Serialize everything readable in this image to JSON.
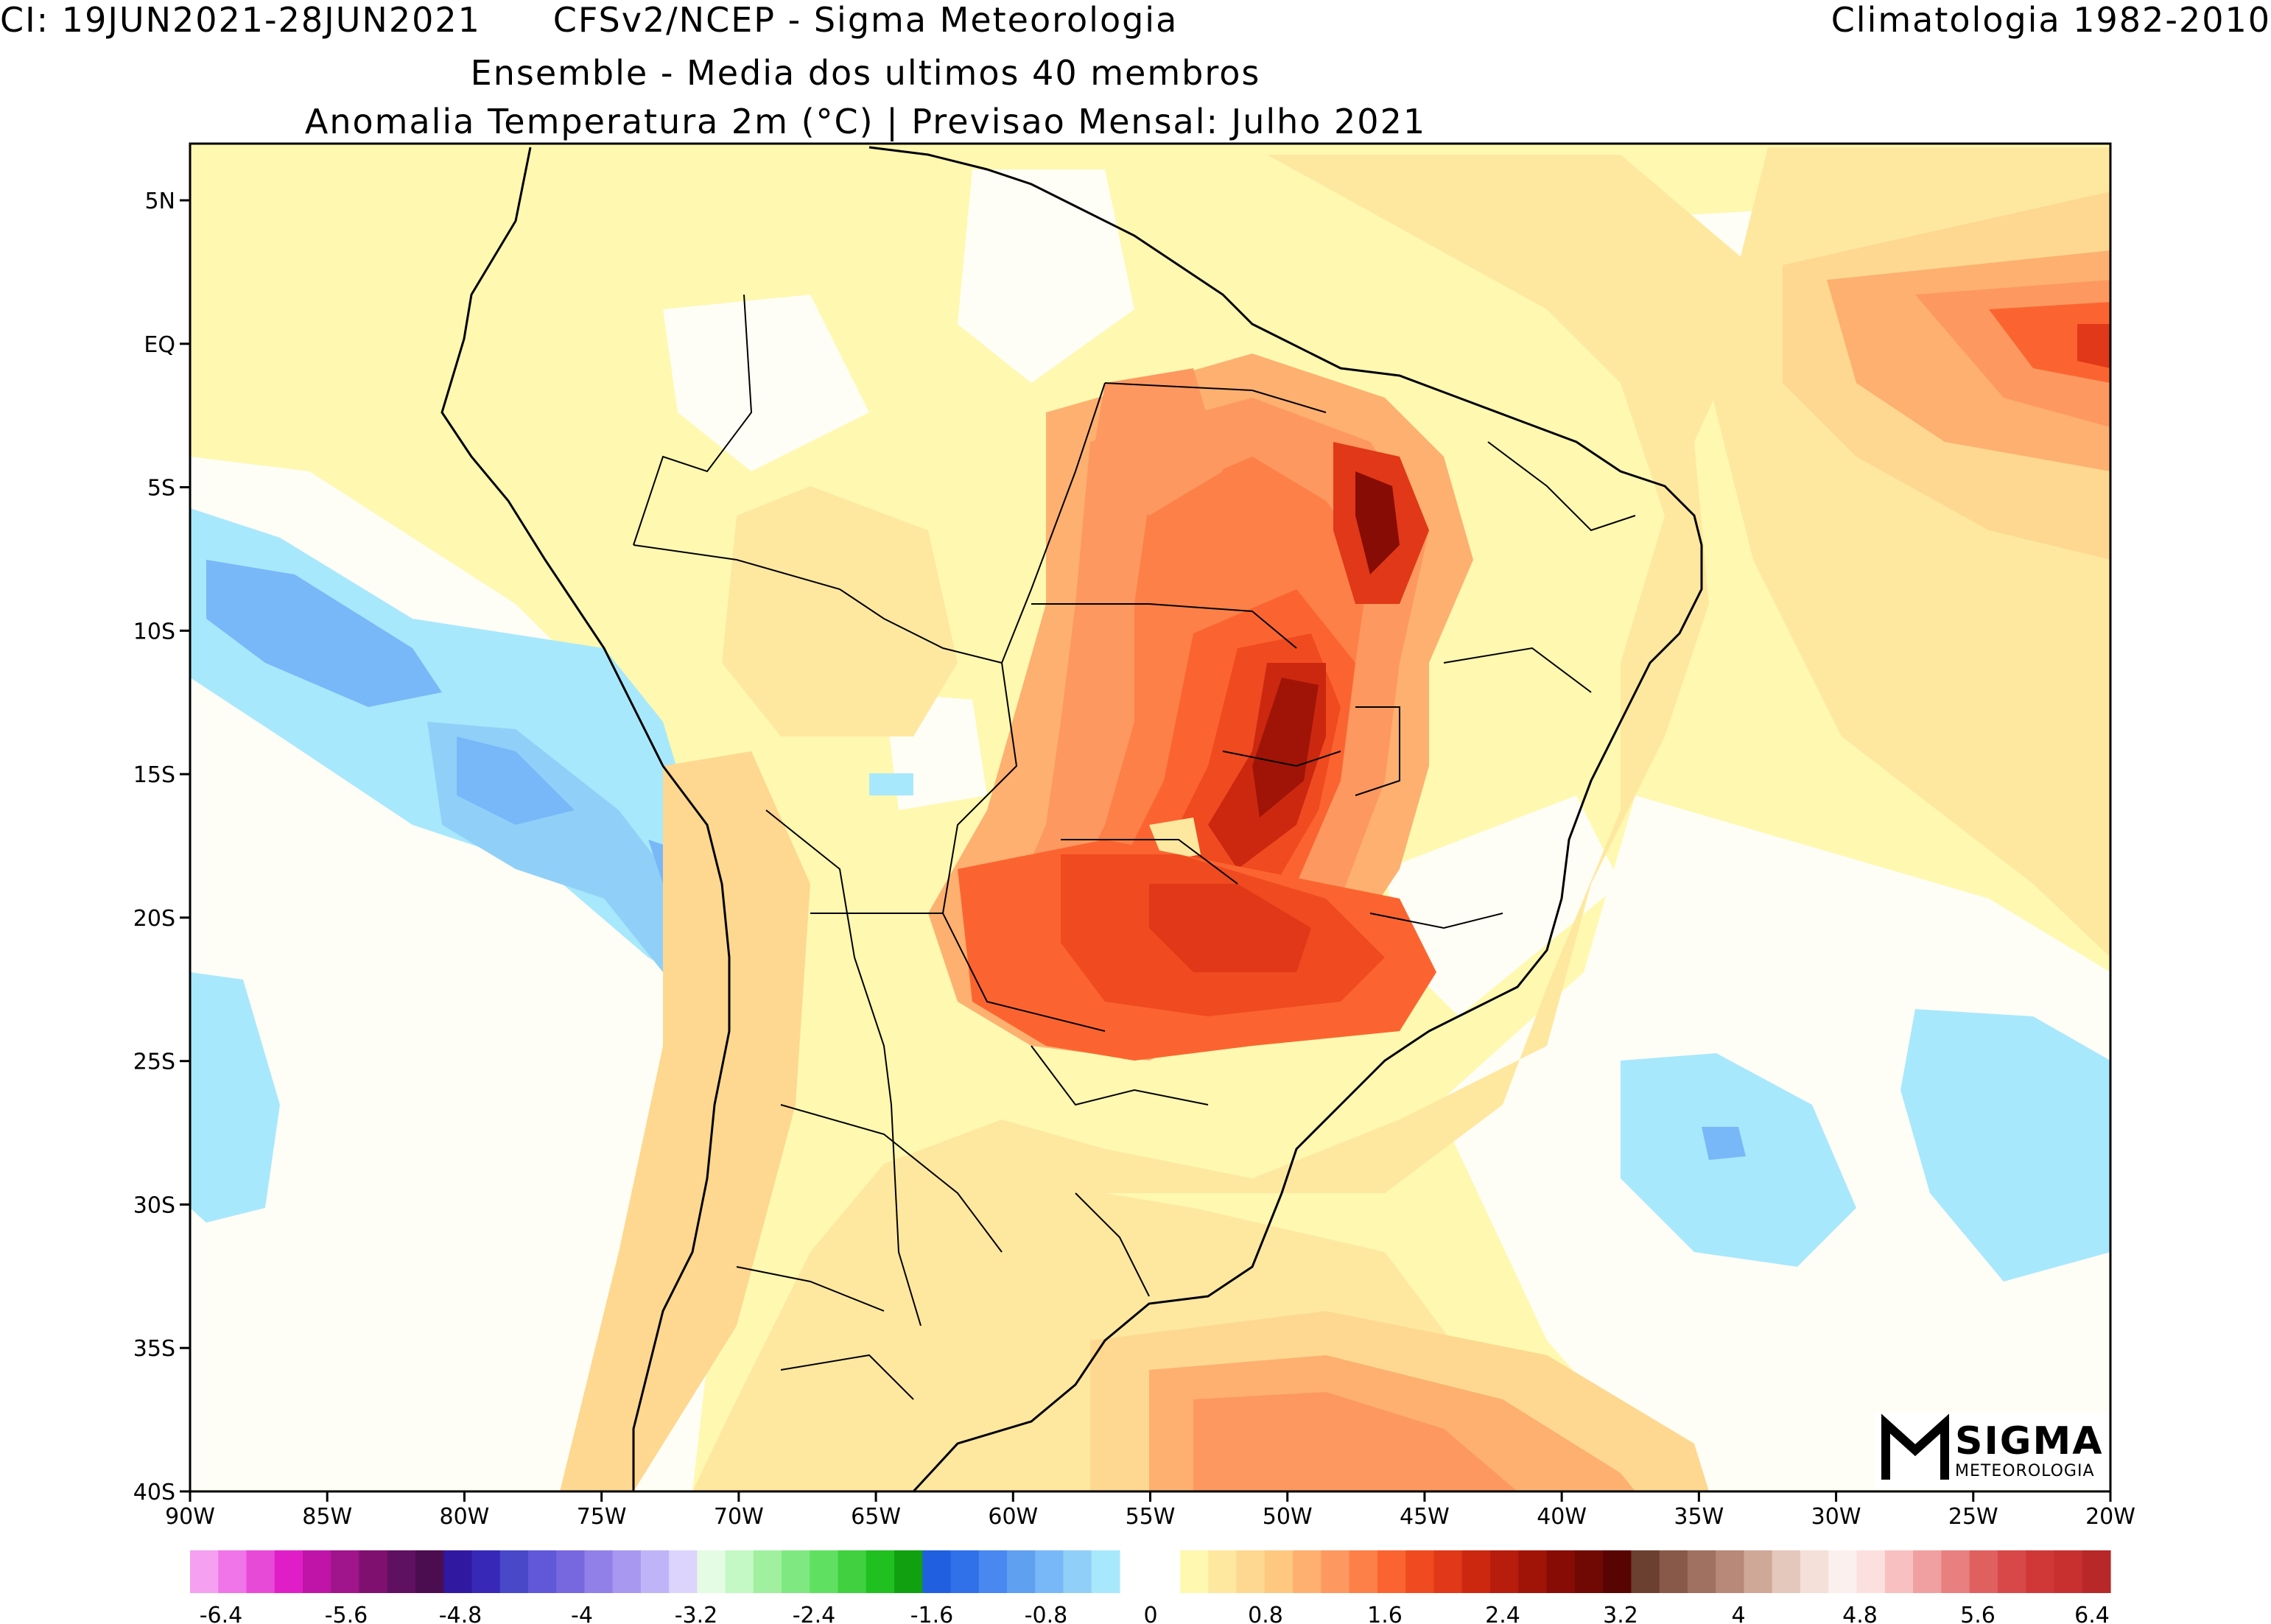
{
  "header": {
    "left": "CI: 19JUN2021-28JUN2021",
    "center": "CFSv2/NCEP - Sigma Meteorologia",
    "right": "Climatologia 1982-2010",
    "subtitle1": "Ensemble - Media dos ultimos 40 membros",
    "subtitle2": "Anomalia Temperatura 2m (°C) | Previsao Mensal: Julho 2021"
  },
  "map": {
    "lon_labels": [
      "90W",
      "85W",
      "80W",
      "75W",
      "70W",
      "65W",
      "60W",
      "55W",
      "50W",
      "45W",
      "40W",
      "35W",
      "30W",
      "25W",
      "20W"
    ],
    "lat_labels": [
      "5N",
      "EQ",
      "5S",
      "10S",
      "15S",
      "20S",
      "25S",
      "30S",
      "35S",
      "40S"
    ]
  },
  "colorbar": {
    "labels": [
      "-6.4",
      "-5.6",
      "-4.8",
      "-4",
      "-3.2",
      "-2.4",
      "-1.6",
      "-0.8",
      "0",
      "0.8",
      "1.6",
      "2.4",
      "3.2",
      "4",
      "4.8",
      "5.6",
      "6.4"
    ],
    "neg_colors": [
      "#f5a0f0",
      "#f075e8",
      "#e84ad8",
      "#e01ec8",
      "#c014a8",
      "#a0148c",
      "#801070",
      "#601060",
      "#4c0c50",
      "#3018a0",
      "#3828b8",
      "#4848c8",
      "#6058d8",
      "#7868e0",
      "#9080e8",
      "#a898f0",
      "#c0b4f8",
      "#dcd4fc",
      "#e4fce4",
      "#c4f8c4",
      "#a0f0a0",
      "#80e880",
      "#60e060",
      "#40d040",
      "#20c020",
      "#10a010",
      "#2060e0",
      "#3070e8",
      "#4888f0",
      "#60a0f0",
      "#78b8f8",
      "#90d0f8",
      "#a8e8fc"
    ],
    "pos_colors": [
      "#fff8b0",
      "#fee8a0",
      "#fed890",
      "#fec880",
      "#fdb070",
      "#fd9860",
      "#fc8048",
      "#fb6430",
      "#f04a20",
      "#e03818",
      "#cc2810",
      "#b81c0c",
      "#a01408",
      "#880c06",
      "#700804",
      "#580402",
      "#6c4030",
      "#885848",
      "#a07060",
      "#b88878",
      "#d0a898",
      "#e4c8bc",
      "#f4e0d8",
      "#fcf0ee",
      "#fce0e0",
      "#f8c0c0",
      "#f0a0a0",
      "#e88080",
      "#e06060",
      "#d84848",
      "#d03838",
      "#c83030",
      "#b82828"
    ]
  },
  "logo": {
    "name": "SIGMA",
    "sub": "METEOROLOGIA"
  }
}
